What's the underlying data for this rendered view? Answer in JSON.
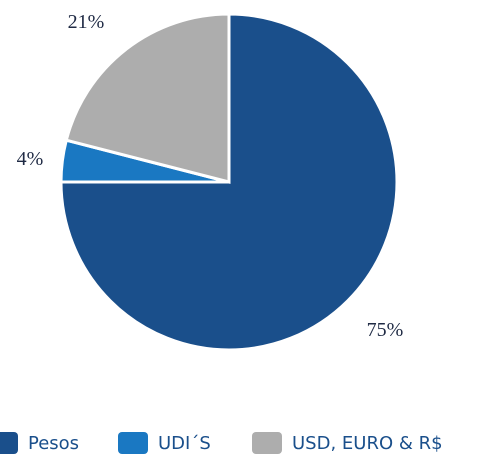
{
  "chart_data": {
    "type": "pie",
    "categories": [
      "Pesos",
      "UDI´S",
      "USD, EURO & R$"
    ],
    "values": [
      75,
      4,
      21
    ],
    "value_labels": [
      "75%",
      "4%",
      "21%"
    ],
    "colors": [
      "#1a4f8b",
      "#1a78c2",
      "#adadad"
    ],
    "legend": "bottom"
  }
}
